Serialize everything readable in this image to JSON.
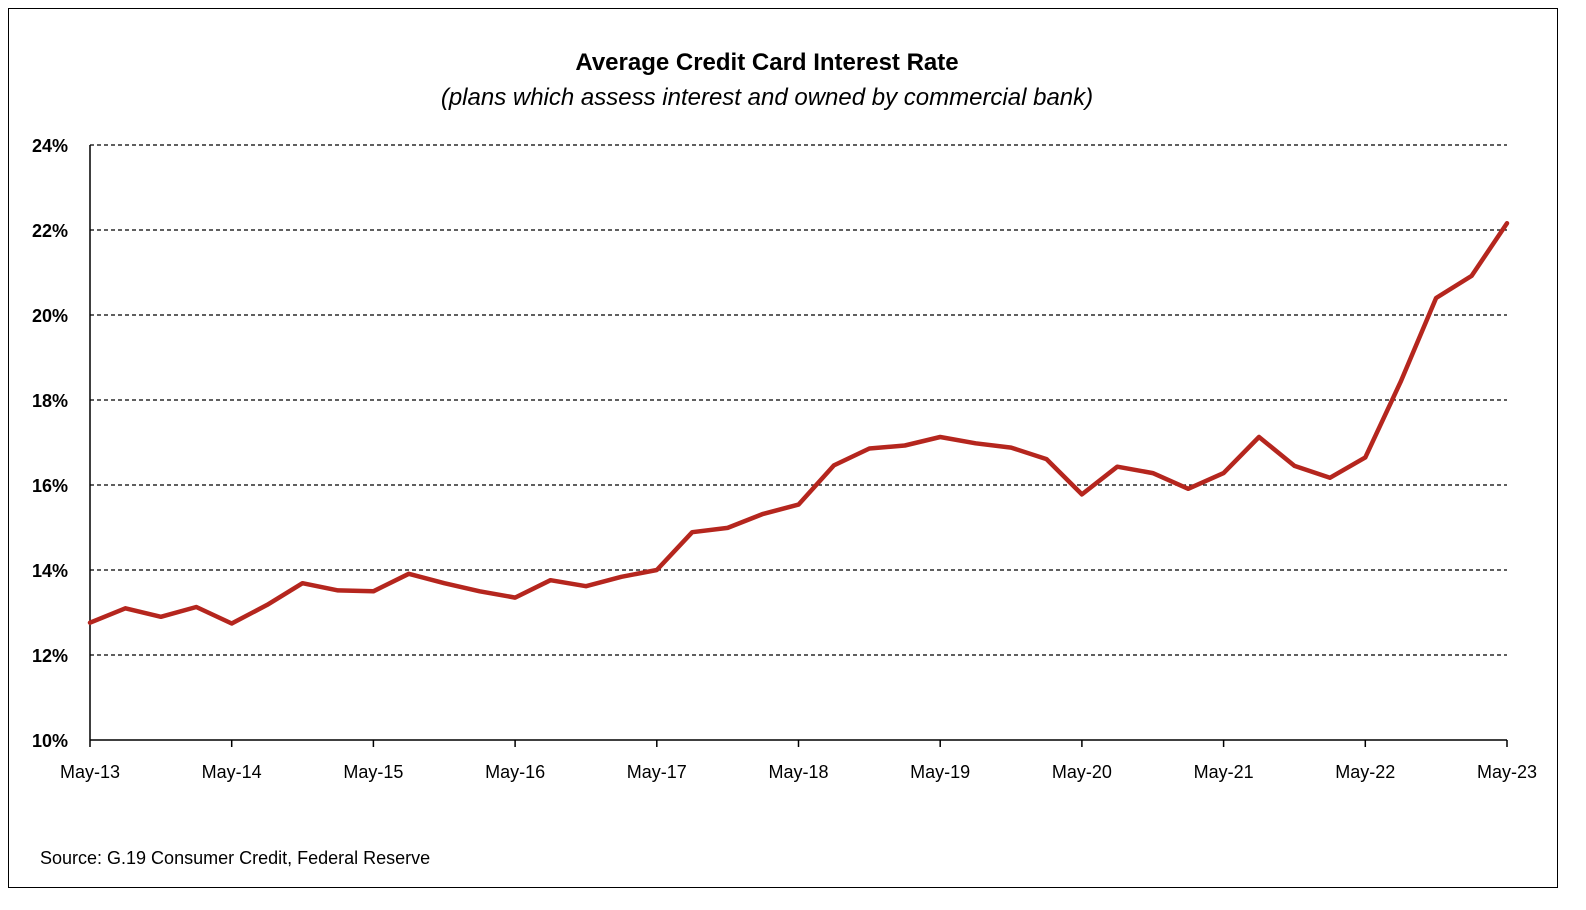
{
  "title": "Average Credit Card Interest Rate",
  "subtitle": "(plans which assess interest and owned by commercial bank)",
  "source": "Source: G.19 Consumer Credit, Federal Reserve",
  "colors": {
    "line": "#b5261e",
    "grid": "#000000",
    "axis": "#000000"
  },
  "chart_data": {
    "type": "line",
    "title": "Average Credit Card Interest Rate",
    "subtitle": "(plans which assess interest and owned by commercial bank)",
    "xlabel": "",
    "ylabel": "",
    "ylim": [
      10,
      24
    ],
    "y_ticks": [
      10,
      12,
      14,
      16,
      18,
      20,
      22,
      24
    ],
    "y_tick_labels": [
      "10%",
      "12%",
      "14%",
      "16%",
      "18%",
      "20%",
      "22%",
      "24%"
    ],
    "x_ticks": [
      "May-13",
      "May-14",
      "May-15",
      "May-16",
      "May-17",
      "May-18",
      "May-19",
      "May-20",
      "May-21",
      "May-22",
      "May-23"
    ],
    "x_range_quarters": [
      0,
      40
    ],
    "grid": "horizontal dashed",
    "series": [
      {
        "values": [
          12.76,
          13.1,
          12.9,
          13.13,
          12.74,
          13.18,
          13.69,
          13.52,
          13.5,
          13.91,
          13.69,
          13.5,
          13.35,
          13.76,
          13.62,
          13.84,
          14.0,
          14.89,
          14.99,
          15.32,
          15.54,
          16.46,
          16.86,
          16.93,
          17.13,
          16.98,
          16.88,
          16.61,
          15.78,
          16.43,
          16.28,
          15.91,
          16.28,
          17.13,
          16.45,
          16.17,
          16.65,
          18.43,
          20.4,
          20.92,
          22.16
        ]
      }
    ]
  }
}
